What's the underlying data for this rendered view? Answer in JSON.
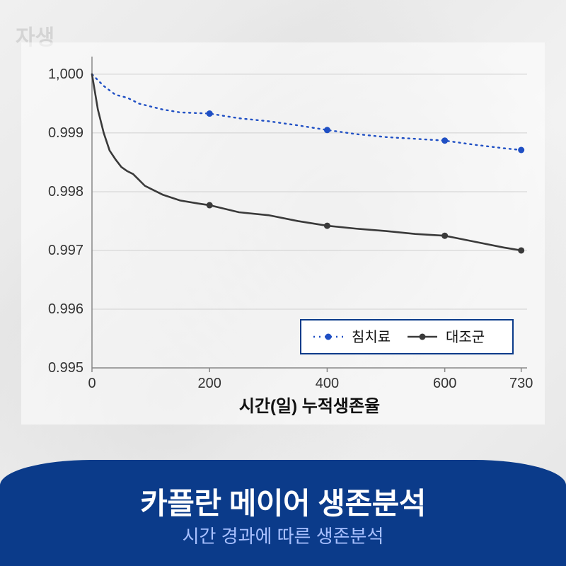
{
  "watermark": "자생",
  "chart": {
    "type": "line",
    "x_label": "시간(일) 누적생존율",
    "x_label_fontsize": 24,
    "x_label_weight": "700",
    "xlim": [
      0,
      740
    ],
    "ylim": [
      0.995,
      1.0003
    ],
    "x_ticks": [
      0,
      200,
      400,
      600,
      730
    ],
    "y_ticks": [
      0.995,
      0.996,
      0.997,
      0.998,
      0.999,
      1.0
    ],
    "y_tick_labels": [
      "0.995",
      "0.996",
      "0.997",
      "0.998",
      "0.999",
      "1,000"
    ],
    "tick_fontsize": 20,
    "tick_color": "#333333",
    "grid_color": "#d0d0d0",
    "axis_color": "#888888",
    "series": [
      {
        "name": "침치료",
        "color": "#1f4fc4",
        "style": "dotted",
        "line_width": 2.4,
        "marker_x": [
          200,
          400,
          600,
          730
        ],
        "marker_fill": "#1f4fc4",
        "marker_r": 4.5,
        "x": [
          0,
          20,
          40,
          60,
          80,
          100,
          120,
          150,
          200,
          250,
          300,
          350,
          400,
          450,
          500,
          550,
          600,
          650,
          700,
          730
        ],
        "y": [
          1.0,
          0.9998,
          0.99965,
          0.9996,
          0.9995,
          0.99945,
          0.9994,
          0.99935,
          0.99933,
          0.99925,
          0.9992,
          0.99913,
          0.99905,
          0.99898,
          0.99893,
          0.9989,
          0.99887,
          0.9988,
          0.99874,
          0.99871
        ]
      },
      {
        "name": "대조군",
        "color": "#3a3a3a",
        "style": "solid",
        "line_width": 2.6,
        "marker_x": [
          200,
          400,
          600,
          730
        ],
        "marker_fill": "#3a3a3a",
        "marker_r": 4.5,
        "x": [
          0,
          10,
          20,
          30,
          40,
          50,
          60,
          70,
          80,
          90,
          100,
          120,
          150,
          180,
          200,
          250,
          300,
          350,
          400,
          450,
          500,
          550,
          600,
          650,
          700,
          730
        ],
        "y": [
          1.0,
          0.9994,
          0.999,
          0.9987,
          0.99855,
          0.99842,
          0.99835,
          0.9983,
          0.9982,
          0.9981,
          0.99805,
          0.99795,
          0.99785,
          0.9978,
          0.99777,
          0.99765,
          0.9976,
          0.9975,
          0.99742,
          0.99737,
          0.99733,
          0.99728,
          0.99725,
          0.99715,
          0.99705,
          0.997
        ]
      }
    ],
    "legend": {
      "box_stroke": "#0b3b8a",
      "box_fill": "#ffffff",
      "fontsize": 20,
      "items": [
        {
          "label": "침치료",
          "series": 0
        },
        {
          "label": "대조군",
          "series": 1
        }
      ]
    }
  },
  "banner": {
    "title": "카플란 메이어 생존분석",
    "title_fontsize": 42,
    "subtitle": "시간 경과에 따른 생존분석",
    "subtitle_fontsize": 26,
    "bg_color": "#0b3b8a",
    "title_color": "#ffffff",
    "subtitle_color": "#a8c0ff"
  }
}
